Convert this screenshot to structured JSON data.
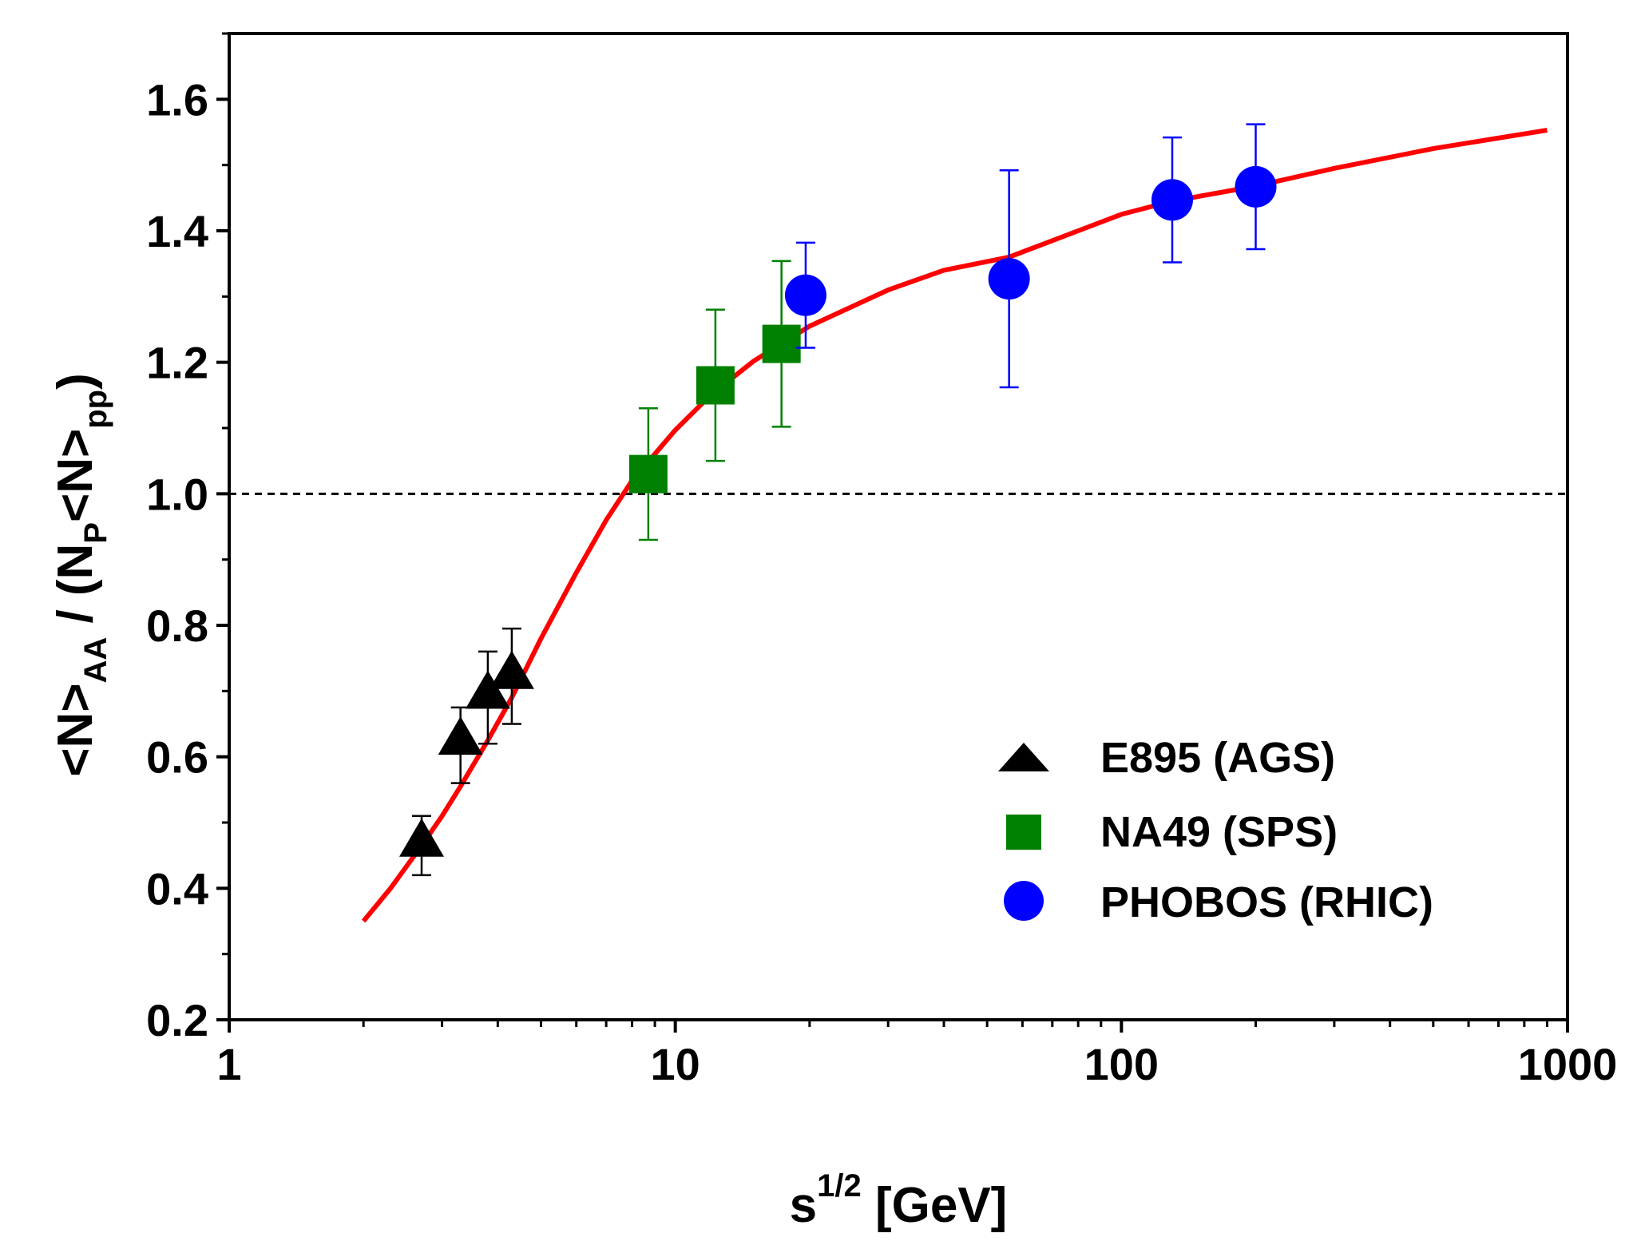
{
  "chart_data": {
    "type": "scatter",
    "title": "",
    "xscale": "log",
    "xlim": [
      1,
      1000
    ],
    "ylim": [
      0.2,
      1.7
    ],
    "x_ticks": [
      1,
      10,
      100,
      1000
    ],
    "x_tick_labels": [
      "1",
      "10",
      "100",
      "1000"
    ],
    "y_ticks": [
      0.2,
      0.4,
      0.6,
      0.8,
      1.0,
      1.2,
      1.4,
      1.6
    ],
    "y_tick_labels": [
      "0.2",
      "0.4",
      "0.6",
      "0.8",
      "1.0",
      "1.2",
      "1.4",
      "1.6"
    ],
    "xlabel": {
      "main": "s",
      "sup": "1/2",
      "unit": " [GeV]"
    },
    "ylabel": {
      "p1": "<N>",
      "s1": "AA",
      "p2": " / (N",
      "s2": "P",
      "p3": "<N>",
      "s3": "pp",
      "p4": ")"
    },
    "reference_line": {
      "y": 1.0,
      "style": "dashed",
      "color": "#000000"
    },
    "legend_position": "bottom-right",
    "series": [
      {
        "name": "E895 (AGS)",
        "marker": "triangle",
        "color": "#000000",
        "points": [
          {
            "x": 2.7,
            "y": 0.47,
            "err_low": 0.05,
            "err_high": 0.04
          },
          {
            "x": 3.3,
            "y": 0.625,
            "err_low": 0.065,
            "err_high": 0.05
          },
          {
            "x": 3.8,
            "y": 0.695,
            "err_low": 0.075,
            "err_high": 0.065
          },
          {
            "x": 4.3,
            "y": 0.725,
            "err_low": 0.075,
            "err_high": 0.07
          }
        ]
      },
      {
        "name": "NA49 (SPS)",
        "marker": "square",
        "color": "#008000",
        "points": [
          {
            "x": 8.7,
            "y": 1.03,
            "err_low": 0.1,
            "err_high": 0.1
          },
          {
            "x": 12.3,
            "y": 1.165,
            "err_low": 0.115,
            "err_high": 0.115
          },
          {
            "x": 17.3,
            "y": 1.228,
            "err_low": 0.126,
            "err_high": 0.126
          }
        ]
      },
      {
        "name": "PHOBOS (RHIC)",
        "marker": "circle",
        "color": "#0000ff",
        "points": [
          {
            "x": 19.6,
            "y": 1.302,
            "err_low": 0.08,
            "err_high": 0.08
          },
          {
            "x": 56,
            "y": 1.327,
            "err_low": 0.165,
            "err_high": 0.165
          },
          {
            "x": 130,
            "y": 1.447,
            "err_low": 0.095,
            "err_high": 0.095
          },
          {
            "x": 200,
            "y": 1.467,
            "err_low": 0.095,
            "err_high": 0.095
          }
        ]
      }
    ],
    "fit_curve": {
      "color": "#ff0000",
      "points": [
        [
          2.0,
          0.35
        ],
        [
          2.3,
          0.4
        ],
        [
          2.7,
          0.465
        ],
        [
          3.0,
          0.51
        ],
        [
          3.3,
          0.555
        ],
        [
          3.8,
          0.625
        ],
        [
          4.3,
          0.69
        ],
        [
          5.0,
          0.78
        ],
        [
          6.0,
          0.88
        ],
        [
          7.0,
          0.96
        ],
        [
          8.0,
          1.02
        ],
        [
          10.0,
          1.097
        ],
        [
          12.0,
          1.15
        ],
        [
          15.0,
          1.202
        ],
        [
          20.0,
          1.255
        ],
        [
          30.0,
          1.31
        ],
        [
          40.0,
          1.34
        ],
        [
          56.0,
          1.36
        ],
        [
          80.0,
          1.4
        ],
        [
          100.0,
          1.425
        ],
        [
          130.0,
          1.445
        ],
        [
          200.0,
          1.468
        ],
        [
          300.0,
          1.495
        ],
        [
          500.0,
          1.525
        ],
        [
          900.0,
          1.553
        ]
      ]
    }
  }
}
